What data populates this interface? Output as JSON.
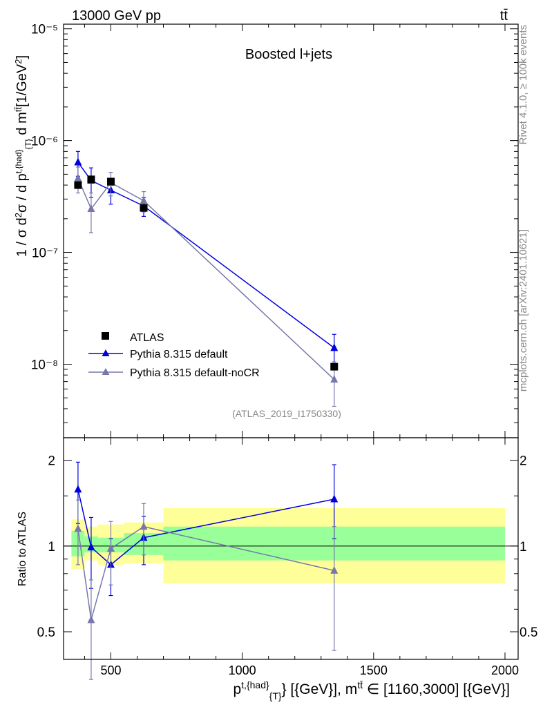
{
  "header": {
    "energy": "13000 GeV pp",
    "process": "tt̄"
  },
  "side": {
    "rivet": "Rivet 4.1.0, ≥ 100k events",
    "mcplots": "mcplots.cern.ch [arXiv:2401.10621]"
  },
  "axes": {
    "ylabel_main": "1 / σ d²σ / d p^{t,{had}}_{T} d m^{tt̄} [1/GeV²]",
    "ylabel_ratio": "Ratio to ATLAS",
    "xlabel": "p^{t,{had}}_{T} [{GeV}], m^{tt̄} ∈ [1160,3000] [{GeV}]",
    "y_main_ticks": [
      "10⁻⁸",
      "10⁻⁷",
      "10⁻⁶",
      "10⁻⁵"
    ],
    "y_ratio_ticks": [
      "0.5",
      "1",
      "2"
    ],
    "x_ticks": [
      "500",
      "1000",
      "1500",
      "2000"
    ]
  },
  "chart_data": {
    "type": "scatter",
    "title": "Boosted l+jets",
    "analysis_id": "(ATLAS_2019_I1750330)",
    "xlabel": "p_T^{t,had} [GeV], m^{tt̄} ∈ [1160,3000] [GeV]",
    "ylabel": "1/σ d²σ / d p_T d m^{tt̄} [1/GeV²]",
    "xlim": [
      320,
      2050
    ],
    "ylim": [
      2.2e-09,
      1.1e-05
    ],
    "yscale": "log",
    "ratio_ylim": [
      0.4,
      2.4
    ],
    "bins": [
      [
        350,
        400
      ],
      [
        400,
        450
      ],
      [
        450,
        550
      ],
      [
        550,
        700
      ],
      [
        700,
        2000
      ]
    ],
    "data_band": {
      "inner": [
        [
          0.92,
          1.13
        ],
        [
          0.95,
          1.08
        ],
        [
          0.95,
          1.07
        ],
        [
          0.93,
          1.11
        ],
        [
          0.89,
          1.17
        ]
      ],
      "outer": [
        [
          0.83,
          1.24
        ],
        [
          0.89,
          1.17
        ],
        [
          0.86,
          1.19
        ],
        [
          0.87,
          1.21
        ],
        [
          0.74,
          1.36
        ]
      ]
    },
    "legend_position": "lower-left",
    "series": [
      {
        "name": "ATLAS",
        "color": "#000000",
        "marker": "square",
        "x": [
          375,
          425,
          500,
          625,
          1350
        ],
        "y": [
          4e-07,
          4.5e-07,
          4.3e-07,
          2.5e-07,
          9.5e-09
        ],
        "yerr_low": [
          4e-07,
          4.5e-07,
          4.3e-07,
          2.5e-07,
          9.5e-09
        ],
        "yerr_high": [
          4e-07,
          4.5e-07,
          4.3e-07,
          2.5e-07,
          9.5e-09
        ],
        "ratio": [
          1.0,
          1.0,
          1.0,
          1.0,
          1.0
        ]
      },
      {
        "name": "Pythia 8.315 default",
        "color": "#0000dd",
        "marker": "triangle",
        "x": [
          375,
          425,
          500,
          625,
          1350
        ],
        "y": [
          6.4e-07,
          4.4e-07,
          3.6e-07,
          2.6e-07,
          1.4e-08
        ],
        "yerr_low": [
          4.8e-07,
          3.1e-07,
          2.7e-07,
          2.1e-07,
          1e-08
        ],
        "yerr_high": [
          8e-07,
          5.7e-07,
          4.5e-07,
          3.1e-07,
          1.85e-08
        ],
        "ratio": [
          1.58,
          0.99,
          0.86,
          1.07,
          1.46
        ],
        "ratio_low": [
          1.2,
          0.71,
          0.67,
          0.86,
          1.06
        ],
        "ratio_high": [
          1.97,
          1.26,
          1.06,
          1.27,
          1.93
        ]
      },
      {
        "name": "Pythia 8.315 default-noCR",
        "color": "#7777aa",
        "marker": "triangle",
        "x": [
          375,
          425,
          500,
          625,
          1350
        ],
        "y": [
          4.6e-07,
          2.45e-07,
          4.2e-07,
          2.9e-07,
          7.3e-09
        ],
        "yerr_low": [
          3.4e-07,
          1.5e-07,
          3.2e-07,
          2.3e-07,
          4.2e-09
        ],
        "yerr_high": [
          5.8e-07,
          3.4e-07,
          5.2e-07,
          3.5e-07,
          1.05e-08
        ],
        "ratio": [
          1.15,
          0.55,
          0.98,
          1.17,
          0.82
        ],
        "ratio_low": [
          0.86,
          0.34,
          0.73,
          0.93,
          0.43
        ],
        "ratio_high": [
          1.45,
          0.76,
          1.22,
          1.41,
          1.17
        ]
      }
    ]
  }
}
